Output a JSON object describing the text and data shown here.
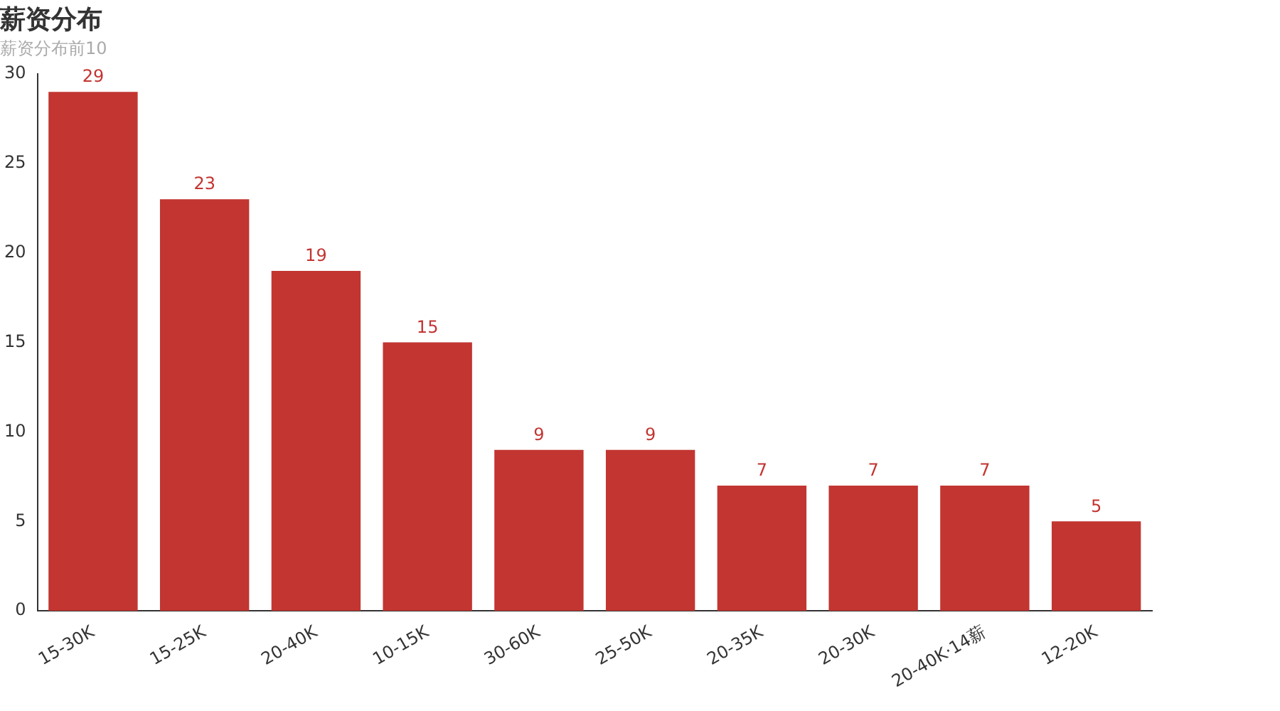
{
  "chart_data": {
    "type": "bar",
    "title": "薪资分布",
    "subtitle": "薪资分布前10",
    "categories": [
      "15-30K",
      "15-25K",
      "20-40K",
      "10-15K",
      "30-60K",
      "25-50K",
      "20-35K",
      "20-30K",
      "20-40K·14薪",
      "12-20K"
    ],
    "series": [
      {
        "color": "#c23531",
        "values": [
          29,
          23,
          19,
          15,
          9,
          9,
          7,
          7,
          7,
          5
        ]
      }
    ],
    "ylim": [
      0,
      30
    ],
    "yticks": [
      0,
      5,
      10,
      15,
      20,
      25,
      30
    ],
    "grid": false,
    "legend": false,
    "data_labels": true
  }
}
